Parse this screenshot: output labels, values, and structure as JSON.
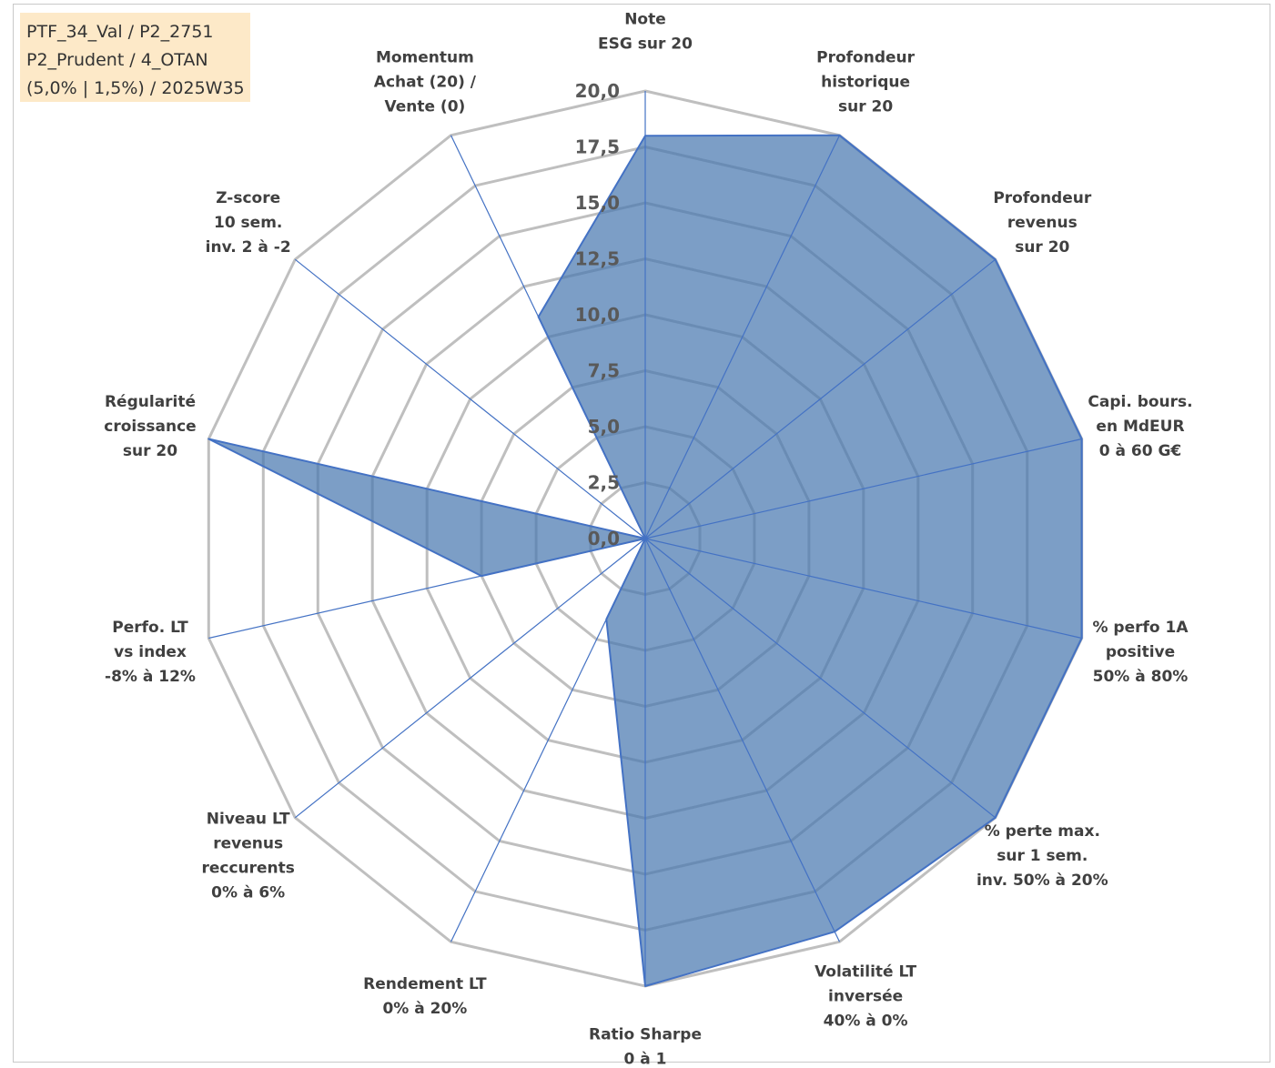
{
  "info_box": {
    "lines": [
      "PTF_34_Val / P2_2751",
      "P2_Prudent / 4_OTAN",
      "(5,0% | 1,5%) / 2025W35"
    ]
  },
  "colors": {
    "fill": "#4a78b0",
    "stroke": "#4472c4",
    "grid": "#bfbfbf",
    "text": "#404040",
    "tick_text": "#595959",
    "info_background": "#fde9c8"
  },
  "chart_data": {
    "type": "radar",
    "max": 20,
    "rings": [
      2.5,
      5,
      7.5,
      10,
      12.5,
      15,
      17.5,
      20
    ],
    "tick_labels": [
      "0,0",
      "2,5",
      "5,0",
      "7,5",
      "10,0",
      "12,5",
      "15,0",
      "17,5",
      "20,0"
    ],
    "axes": [
      {
        "label": [
          "Note",
          "ESG sur 20"
        ],
        "value": 18
      },
      {
        "label": [
          "Profondeur",
          "historique",
          "sur 20"
        ],
        "value": 20
      },
      {
        "label": [
          "Profondeur",
          "revenus",
          "sur 20"
        ],
        "value": 20
      },
      {
        "label": [
          "Capi. bours.",
          "en MdEUR",
          "0 à 60 G€"
        ],
        "value": 20
      },
      {
        "label": [
          "% perfo 1A",
          "positive",
          "50% à 80%"
        ],
        "value": 20
      },
      {
        "label": [
          "% perte max.",
          "sur 1 sem.",
          "inv. 50% à 20%"
        ],
        "value": 20
      },
      {
        "label": [
          "Volatilité LT",
          "inversée",
          "40% à 0%"
        ],
        "value": 19.5
      },
      {
        "label": [
          "Ratio Sharpe",
          "0 à 1"
        ],
        "value": 20
      },
      {
        "label": [
          "Rendement LT",
          "0% à 20%"
        ],
        "value": 4
      },
      {
        "label": [
          "Niveau LT",
          "revenus",
          "reccurents",
          "0% à 6%"
        ],
        "value": 0
      },
      {
        "label": [
          "Perfo. LT",
          "vs index",
          "-8% à 12%"
        ],
        "value": 7.5
      },
      {
        "label": [
          "Régularité",
          "croissance",
          "sur 20"
        ],
        "value": 20
      },
      {
        "label": [
          "Z-score",
          "10 sem.",
          "inv. 2 à -2"
        ],
        "value": 0
      },
      {
        "label": [
          "Momentum",
          "Achat (20) /",
          "Vente (0)"
        ],
        "value": 11
      }
    ]
  }
}
